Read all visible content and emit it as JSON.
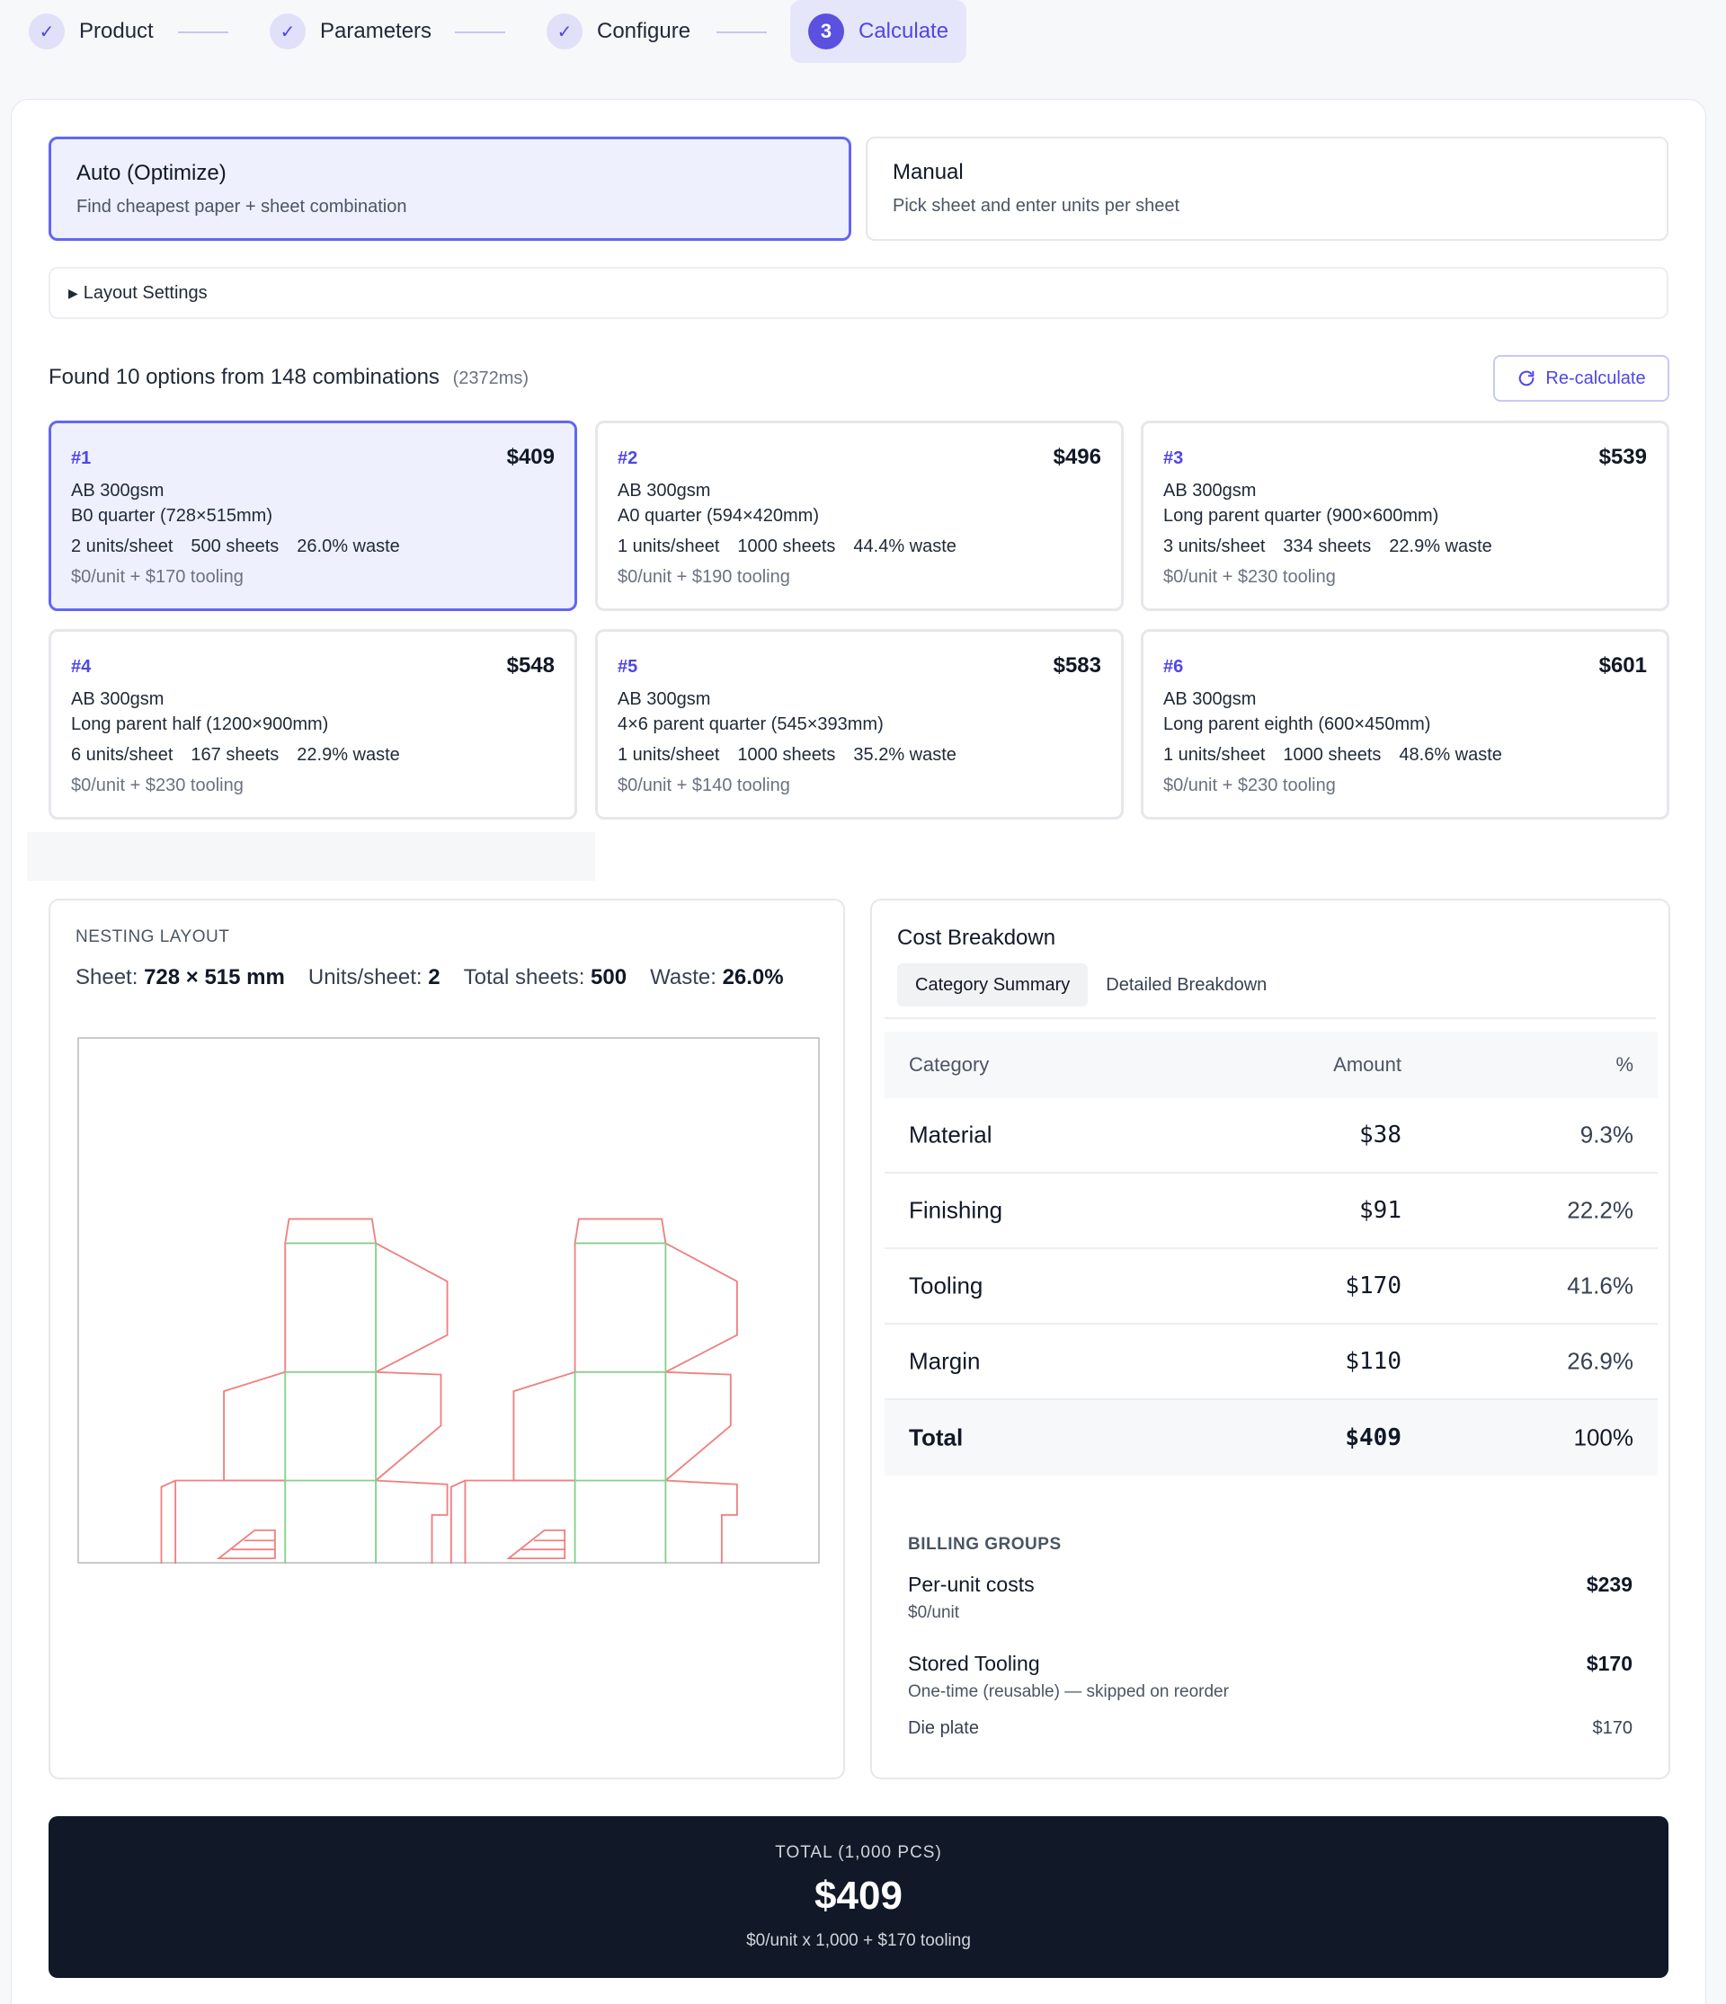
{
  "stepper": [
    {
      "label": "Product",
      "icon": "check-icon",
      "state": "done"
    },
    {
      "label": "Parameters",
      "icon": "check-icon",
      "state": "done"
    },
    {
      "label": "Configure",
      "icon": "check-icon",
      "state": "done"
    },
    {
      "label": "Calculate",
      "number": "3",
      "state": "active"
    }
  ],
  "modes": {
    "auto": {
      "title": "Auto (Optimize)",
      "desc": "Find cheapest paper + sheet combination",
      "selected": true
    },
    "manual": {
      "title": "Manual",
      "desc": "Pick sheet and enter units per sheet",
      "selected": false
    }
  },
  "layout_settings": {
    "label": "Layout Settings",
    "icon": "triangle-right-icon"
  },
  "results": {
    "summary": "Found 10 options from 148 combinations",
    "time": "(2372ms)",
    "recalc_label": "Re-calculate",
    "recalc_icon": "refresh-icon"
  },
  "options": [
    {
      "rank": "#1",
      "price": "$409",
      "paper": "AB 300gsm",
      "sheet": "B0 quarter (728×515mm)",
      "units": "2 units/sheet",
      "sheets": "500 sheets",
      "waste": "26.0% waste",
      "cost": "$0/unit + $170 tooling"
    },
    {
      "rank": "#2",
      "price": "$496",
      "paper": "AB 300gsm",
      "sheet": "A0 quarter (594×420mm)",
      "units": "1 units/sheet",
      "sheets": "1000 sheets",
      "waste": "44.4% waste",
      "cost": "$0/unit + $190 tooling"
    },
    {
      "rank": "#3",
      "price": "$539",
      "paper": "AB 300gsm",
      "sheet": "Long parent quarter (900×600mm)",
      "units": "3 units/sheet",
      "sheets": "334 sheets",
      "waste": "22.9% waste",
      "cost": "$0/unit + $230 tooling"
    },
    {
      "rank": "#4",
      "price": "$548",
      "paper": "AB 300gsm",
      "sheet": "Long parent half (1200×900mm)",
      "units": "6 units/sheet",
      "sheets": "167 sheets",
      "waste": "22.9% waste",
      "cost": "$0/unit + $230 tooling"
    },
    {
      "rank": "#5",
      "price": "$583",
      "paper": "AB 300gsm",
      "sheet": "4×6 parent quarter (545×393mm)",
      "units": "1 units/sheet",
      "sheets": "1000 sheets",
      "waste": "35.2% waste",
      "cost": "$0/unit + $140 tooling"
    },
    {
      "rank": "#6",
      "price": "$601",
      "paper": "AB 300gsm",
      "sheet": "Long parent eighth (600×450mm)",
      "units": "1 units/sheet",
      "sheets": "1000 sheets",
      "waste": "48.6% waste",
      "cost": "$0/unit + $230 tooling"
    }
  ],
  "nesting": {
    "title": "NESTING LAYOUT",
    "sheet_label": "Sheet:",
    "sheet_value": "728 × 515 mm",
    "units_label": "Units/sheet:",
    "units_value": "2",
    "total_label": "Total sheets:",
    "total_value": "500",
    "waste_label": "Waste:",
    "waste_value": "26.0%"
  },
  "cost": {
    "title": "Cost Breakdown",
    "tabs": [
      "Category Summary",
      "Detailed Breakdown"
    ],
    "headers": {
      "category": "Category",
      "amount": "Amount",
      "pct": "%"
    },
    "rows": [
      {
        "category": "Material",
        "amount": "$38",
        "pct": "9.3%"
      },
      {
        "category": "Finishing",
        "amount": "$91",
        "pct": "22.2%"
      },
      {
        "category": "Tooling",
        "amount": "$170",
        "pct": "41.6%"
      },
      {
        "category": "Margin",
        "amount": "$110",
        "pct": "26.9%"
      }
    ],
    "total": {
      "category": "Total",
      "amount": "$409",
      "pct": "100%"
    },
    "billing": {
      "heading": "BILLING GROUPS",
      "per_unit": {
        "name": "Per-unit costs",
        "sub": "$0/unit",
        "amount": "$239"
      },
      "tooling": {
        "name": "Stored Tooling",
        "sub": "One-time (reusable) — skipped on reorder",
        "amount": "$170"
      },
      "die": {
        "name": "Die plate",
        "amount": "$170"
      }
    }
  },
  "footer": {
    "label": "TOTAL (1,000 PCS)",
    "total": "$409",
    "sub": "$0/unit x 1,000 + $170 tooling"
  },
  "colors": {
    "accent": "#4f46e5",
    "dieline_cut": "#f08080",
    "dieline_fold": "#86d18a",
    "footer_bg": "#111827"
  }
}
